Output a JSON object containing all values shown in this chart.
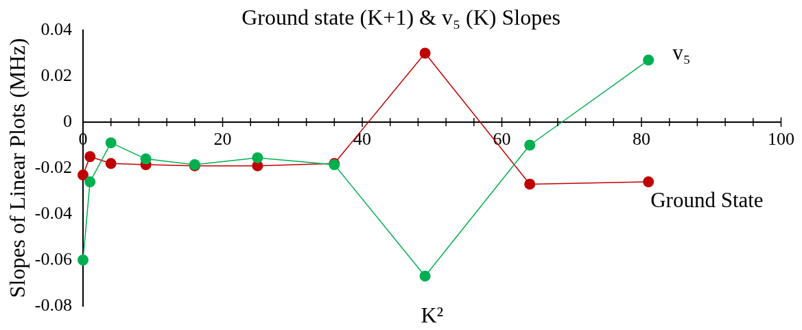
{
  "chart_data": {
    "type": "line",
    "title": "Ground state (K+1) & v₅ (K) Slopes",
    "xlabel": "K²",
    "ylabel": "Slopes of Linear Plots (MHz)",
    "x": [
      0,
      1,
      4,
      9,
      16,
      25,
      36,
      49,
      64,
      81
    ],
    "series": [
      {
        "name": "Ground State",
        "color": "#c00000",
        "values": [
          -0.023,
          -0.015,
          -0.018,
          -0.0185,
          -0.019,
          -0.019,
          -0.018,
          0.03,
          -0.027,
          -0.026
        ]
      },
      {
        "name": "v₅",
        "color": "#00b050",
        "values": [
          -0.06,
          -0.026,
          -0.009,
          -0.016,
          -0.0185,
          -0.0155,
          -0.0185,
          -0.067,
          -0.01,
          0.027
        ]
      }
    ],
    "xlim": [
      0,
      100
    ],
    "xticks": [
      0,
      {
        "value": 4,
        "label": null
      },
      {
        "value": 8,
        "label": null
      },
      {
        "value": 12,
        "label": null
      },
      {
        "value": 16,
        "label": null
      },
      20,
      {
        "value": 24,
        "label": null
      },
      {
        "value": 28,
        "label": null
      },
      {
        "value": 32,
        "label": null
      },
      {
        "value": 36,
        "label": null
      },
      40,
      {
        "value": 44,
        "label": null
      },
      {
        "value": 48,
        "label": null
      },
      {
        "value": 52,
        "label": null
      },
      {
        "value": 56,
        "label": null
      },
      60,
      {
        "value": 64,
        "label": null
      },
      {
        "value": 68,
        "label": null
      },
      {
        "value": 72,
        "label": null
      },
      {
        "value": 76,
        "label": null
      },
      80,
      {
        "value": 84,
        "label": null
      },
      {
        "value": 88,
        "label": null
      },
      {
        "value": 92,
        "label": null
      },
      {
        "value": 96,
        "label": null
      },
      100
    ],
    "ylim": [
      -0.08,
      0.04
    ],
    "yticks": [
      -0.08,
      -0.06,
      -0.04,
      -0.02,
      0,
      0.02,
      0.04
    ],
    "marker": "circle",
    "line_style": "solid"
  }
}
